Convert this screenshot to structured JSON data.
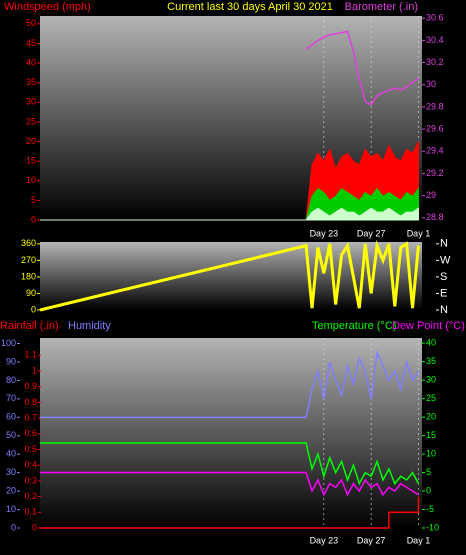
{
  "chart_data": [
    {
      "type": "line",
      "title": "Current last 30 days April 30 2021",
      "x": [
        -2,
        20.5,
        21,
        21.5,
        22,
        22.5,
        23,
        23.5,
        24,
        24.5,
        25,
        25.5,
        26,
        26.5,
        27,
        27.5,
        28,
        28.5,
        29,
        29.5,
        30
      ],
      "xlim": [
        -2,
        30.3
      ],
      "xticks": [
        {
          "value": 22,
          "label": "Day 23"
        },
        {
          "value": 26,
          "label": "Day 27"
        },
        {
          "value": 30,
          "label": "Day 1"
        }
      ],
      "ylim": [
        0,
        52
      ],
      "yticks": [
        0,
        5,
        10,
        15,
        20,
        25,
        30,
        35,
        40,
        45,
        50
      ],
      "y2lim": [
        28.78,
        30.62
      ],
      "y2ticks": [
        28.8,
        29,
        29.2,
        29.4,
        29.6,
        29.8,
        30,
        30.2,
        30.4,
        30.6
      ],
      "series": [
        {
          "name": "Windspeed (mph)",
          "color": "#ff0000",
          "area": true,
          "values": [
            0,
            0,
            14,
            17,
            15,
            18,
            13,
            16,
            17,
            15,
            14,
            18,
            16,
            17,
            15,
            19,
            16,
            15,
            18,
            17,
            20
          ]
        },
        {
          "color": "#00cc00",
          "area": true,
          "values": [
            0,
            0,
            6,
            8,
            7,
            5,
            6,
            8,
            7,
            6,
            5,
            7,
            6,
            8,
            6,
            7,
            6,
            5,
            7,
            6,
            8
          ]
        },
        {
          "color": "#ccffcc",
          "area": true,
          "values": [
            0,
            0,
            2,
            3,
            2,
            1,
            2,
            3,
            2,
            2,
            1,
            2,
            3,
            2,
            2,
            3,
            2,
            1,
            2,
            2,
            3
          ]
        },
        {
          "name": "Barometer (.in)",
          "color": "#e040e0",
          "axis": "y2",
          "values": [
            null,
            30.32,
            30.36,
            30.4,
            30.43,
            30.45,
            30.46,
            30.47,
            30.48,
            30.3,
            30.05,
            29.85,
            29.82,
            29.9,
            29.93,
            29.95,
            29.97,
            29.95,
            29.98,
            30.02,
            30.06
          ]
        }
      ]
    },
    {
      "type": "line",
      "x": [
        -2,
        20.5,
        21,
        21.5,
        22,
        22.5,
        23,
        23.5,
        24,
        24.5,
        25,
        25.5,
        26,
        26.5,
        27,
        27.5,
        28,
        28.5,
        29,
        29.5,
        30
      ],
      "xlim": [
        -2,
        30.3
      ],
      "ylim": [
        0,
        370
      ],
      "yticks": [
        0,
        90,
        180,
        270,
        360
      ],
      "y2lim": [
        0,
        370
      ],
      "y2ticks": [
        {
          "value": 360,
          "label": "N"
        },
        {
          "value": 270,
          "label": "W"
        },
        {
          "value": 180,
          "label": "S"
        },
        {
          "value": 90,
          "label": "E"
        },
        {
          "value": 0,
          "label": "N"
        }
      ],
      "series": [
        {
          "color": "#ffff00",
          "values": [
            0,
            350,
            10,
            340,
            200,
            360,
            30,
            300,
            350,
            180,
            10,
            360,
            90,
            350,
            270,
            360,
            20,
            340,
            360,
            10,
            350
          ]
        }
      ]
    },
    {
      "type": "line",
      "x": [
        -2,
        20.5,
        21,
        21.5,
        22,
        22.5,
        23,
        23.5,
        24,
        24.5,
        25,
        25.5,
        26,
        26.5,
        27,
        27.5,
        28,
        28.5,
        29,
        29.5,
        30
      ],
      "xlim": [
        -2,
        30.3
      ],
      "xticks": [
        {
          "value": 22,
          "label": "Day 23"
        },
        {
          "value": 26,
          "label": "Day 27"
        },
        {
          "value": 30,
          "label": "Day 1"
        }
      ],
      "ylim": [
        0,
        1.21
      ],
      "yticks": [
        0,
        0.1,
        0.2,
        0.3,
        0.4,
        0.5,
        0.6,
        0.7,
        0.8,
        0.9,
        1,
        1.1
      ],
      "y3lim": [
        0,
        103
      ],
      "y3ticks": [
        0,
        10,
        20,
        30,
        40,
        50,
        60,
        70,
        80,
        90,
        100
      ],
      "y2lim": [
        -10,
        41.4
      ],
      "y2ticks": [
        -10,
        -5,
        0,
        5,
        10,
        15,
        20,
        25,
        30,
        35,
        40
      ],
      "series": [
        {
          "name": "Rainfall (.in)",
          "color": "#ff0000",
          "step": true,
          "values": [
            0,
            0,
            0,
            0,
            0,
            0,
            0,
            0,
            0,
            0,
            0,
            0,
            0,
            0,
            0,
            0.1,
            0.1,
            0.1,
            0.1,
            0.1,
            0.2
          ]
        },
        {
          "name": "Humidity",
          "color": "#8080ff",
          "axis": "y3",
          "values": [
            60,
            60,
            75,
            85,
            70,
            90,
            80,
            72,
            88,
            78,
            92,
            85,
            70,
            95,
            88,
            80,
            85,
            75,
            90,
            80,
            85
          ]
        },
        {
          "name": "Temperature (°C)",
          "color": "#00ff00",
          "axis": "y2",
          "values": [
            13,
            13,
            6,
            10,
            4,
            9,
            5,
            8,
            3,
            7,
            2,
            5,
            4,
            8,
            3,
            6,
            2,
            4,
            3,
            5,
            2
          ]
        },
        {
          "name": "Dew Point (°C)",
          "color": "#ff00ff",
          "axis": "y2",
          "values": [
            5,
            5,
            0,
            3,
            -1,
            2,
            1,
            3,
            -1,
            2,
            0,
            3,
            1,
            2,
            -1,
            1,
            0,
            2,
            1,
            0,
            -1
          ]
        }
      ]
    }
  ]
}
